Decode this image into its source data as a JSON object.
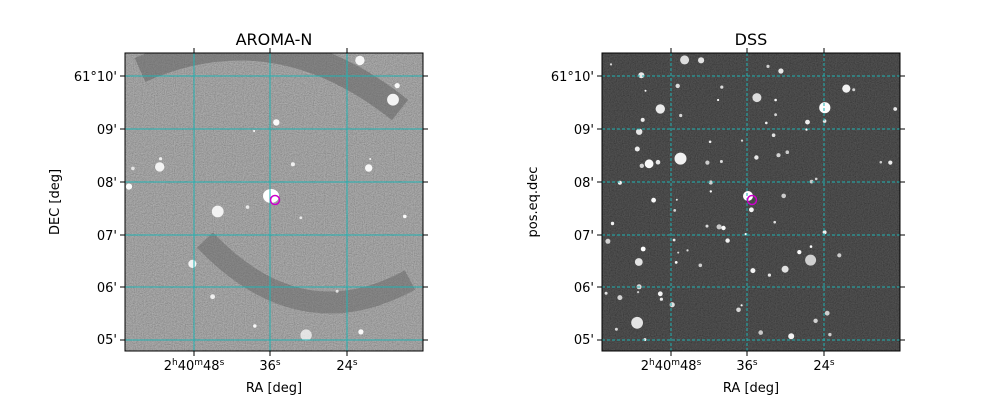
{
  "chart_data": [
    {
      "type": "image",
      "title": "AROMA-N",
      "xlabel": "RA [deg]",
      "ylabel": "DEC [deg]",
      "xticks": [
        {
          "value": "2h40m48s",
          "label": {
            "h": "2",
            "m": "40",
            "s": "48"
          }
        },
        {
          "value": "2h40m36s",
          "label": {
            "s": "36"
          }
        },
        {
          "value": "2h40m24s",
          "label": {
            "s": "24"
          }
        }
      ],
      "yticks": [
        "61°10'",
        "09'",
        "08'",
        "07'",
        "06'",
        "05'"
      ],
      "grid": true,
      "marker": {
        "shape": "circle",
        "color": "#cc00cc"
      },
      "style": {
        "background": "#7a7a7a",
        "noise": "light",
        "gridcolor": "#20b2b2"
      }
    },
    {
      "type": "image",
      "title": "DSS",
      "xlabel": "RA [deg]",
      "ylabel": "pos.eq.dec",
      "xticks": [
        {
          "value": "2h40m48s",
          "label": {
            "h": "2",
            "m": "40",
            "s": "48"
          }
        },
        {
          "value": "2h40m36s",
          "label": {
            "s": "36"
          }
        },
        {
          "value": "2h40m24s",
          "label": {
            "s": "24"
          }
        }
      ],
      "yticks": [
        "61°10'",
        "09'",
        "08'",
        "07'",
        "06'",
        "05'"
      ],
      "grid": true,
      "marker": {
        "shape": "circle",
        "color": "#cc00cc"
      },
      "style": {
        "background": "#262626",
        "noise": "dark",
        "gridcolor": "#20b2b2"
      }
    }
  ]
}
